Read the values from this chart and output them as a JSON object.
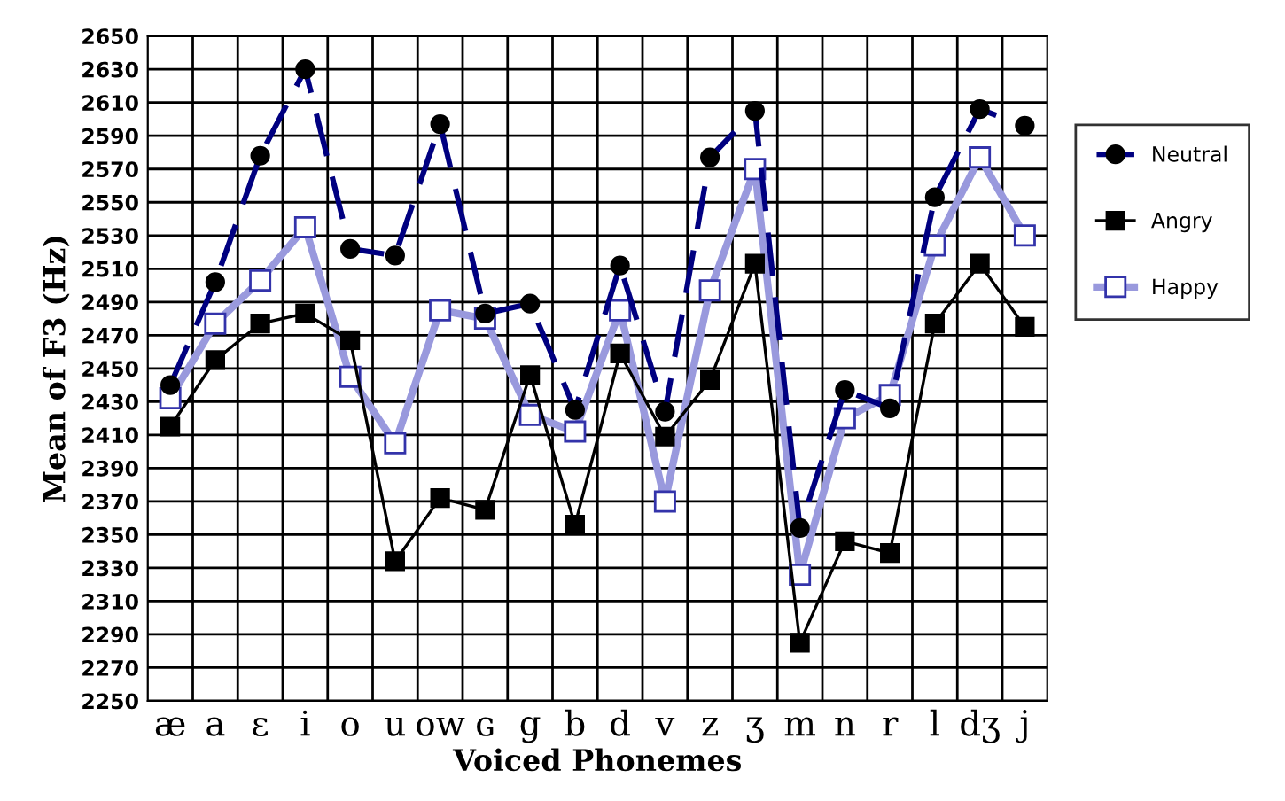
{
  "chart_data": {
    "type": "line",
    "xlabel": "Voiced Phonemes",
    "ylabel": "Mean of F3 (Hz)",
    "categories": [
      "æ",
      "a",
      "ɛ",
      "i",
      "o",
      "u",
      "ow",
      "ɢ",
      "g",
      "b",
      "d",
      "v",
      "z",
      "ʒ",
      "m",
      "n",
      "r",
      "l",
      "dʒ",
      "j"
    ],
    "series": [
      {
        "name": "Neutral",
        "color": "#000080",
        "line_style": "dashed",
        "marker": "circle",
        "values": [
          2440,
          2502,
          2578,
          2630,
          2522,
          2518,
          2597,
          2483,
          2489,
          2425,
          2512,
          2424,
          2577,
          2605,
          2354,
          2437,
          2426,
          2553,
          2606,
          2596
        ]
      },
      {
        "name": "Angry",
        "color": "#000000",
        "line_style": "solid",
        "marker": "square",
        "values": [
          2415,
          2455,
          2477,
          2483,
          2467,
          2334,
          2372,
          2365,
          2446,
          2356,
          2459,
          2409,
          2443,
          2513,
          2285,
          2346,
          2339,
          2477,
          2513,
          2475
        ]
      },
      {
        "name": "Happy",
        "color": "#9999dd",
        "line_style": "solid",
        "marker": "square",
        "values": [
          2432,
          2477,
          2503,
          2535,
          2445,
          2405,
          2485,
          2480,
          2422,
          2412,
          2485,
          2370,
          2497,
          2570,
          2326,
          2420,
          2434,
          2524,
          2577,
          2530
        ]
      }
    ],
    "ylim": [
      2250,
      2650
    ],
    "yticks": [
      2250,
      2270,
      2290,
      2310,
      2330,
      2350,
      2370,
      2390,
      2410,
      2430,
      2450,
      2470,
      2490,
      2510,
      2530,
      2550,
      2570,
      2590,
      2610,
      2630,
      2650
    ],
    "grid": true,
    "legend": "right"
  }
}
